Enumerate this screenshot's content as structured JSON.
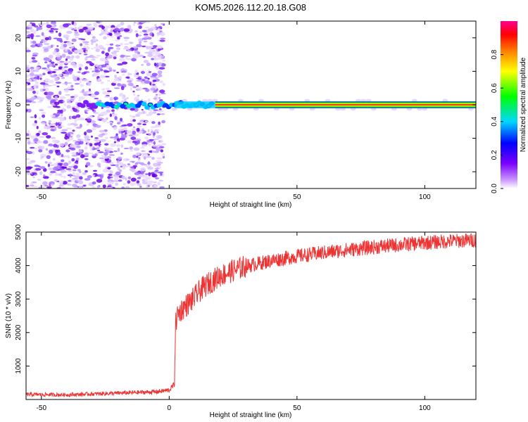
{
  "title": "KOM5.2026.112.20.18.G08",
  "chart_data": [
    {
      "type": "heatmap",
      "xlabel": "Height of straight line (km)",
      "ylabel": "Frequency (Hz)",
      "xlim": [
        -56,
        120
      ],
      "ylim": [
        -25,
        25
      ],
      "xticks": [
        -50,
        0,
        50,
        100
      ],
      "yticks": [
        -20,
        -10,
        0,
        10,
        20
      ],
      "grid": false,
      "colorbar": {
        "label": "Normalized spectral amplitude",
        "range": [
          0,
          1
        ],
        "ticks": [
          "0.0",
          "0.2",
          "0.4",
          "0.6",
          "0.8"
        ],
        "colors": [
          "#ffffff",
          "#7a00ff",
          "#0000ff",
          "#00d8ff",
          "#00ff00",
          "#ffff00",
          "#ff8000",
          "#ff0000",
          "#ff0090"
        ]
      },
      "features": {
        "noise_region_x": [
          -56,
          -2
        ],
        "carrier_frequency_hz": 0,
        "carrier_onset_x": 2,
        "max_amplitude_from_x": 18
      }
    },
    {
      "type": "line",
      "xlabel": "Height of straight line (km)",
      "ylabel": "SNR (10 * v/v)",
      "xlim": [
        -56,
        120
      ],
      "ylim": [
        0,
        5000
      ],
      "xticks": [
        -50,
        0,
        50,
        100
      ],
      "yticks": [
        1000,
        2000,
        3000,
        4000,
        5000
      ],
      "grid": false,
      "series": [
        {
          "color": "#ee3333",
          "x": [
            -56,
            -40,
            -20,
            -5,
            0,
            2,
            2.5,
            3,
            5,
            8,
            10,
            12,
            15,
            20,
            25,
            30,
            40,
            50,
            60,
            70,
            80,
            90,
            100,
            110,
            120
          ],
          "y": [
            150,
            140,
            190,
            230,
            280,
            450,
            2200,
            2500,
            2700,
            2900,
            3050,
            3250,
            3450,
            3700,
            3850,
            3980,
            4150,
            4280,
            4380,
            4470,
            4550,
            4620,
            4680,
            4730,
            4760
          ]
        }
      ]
    }
  ]
}
